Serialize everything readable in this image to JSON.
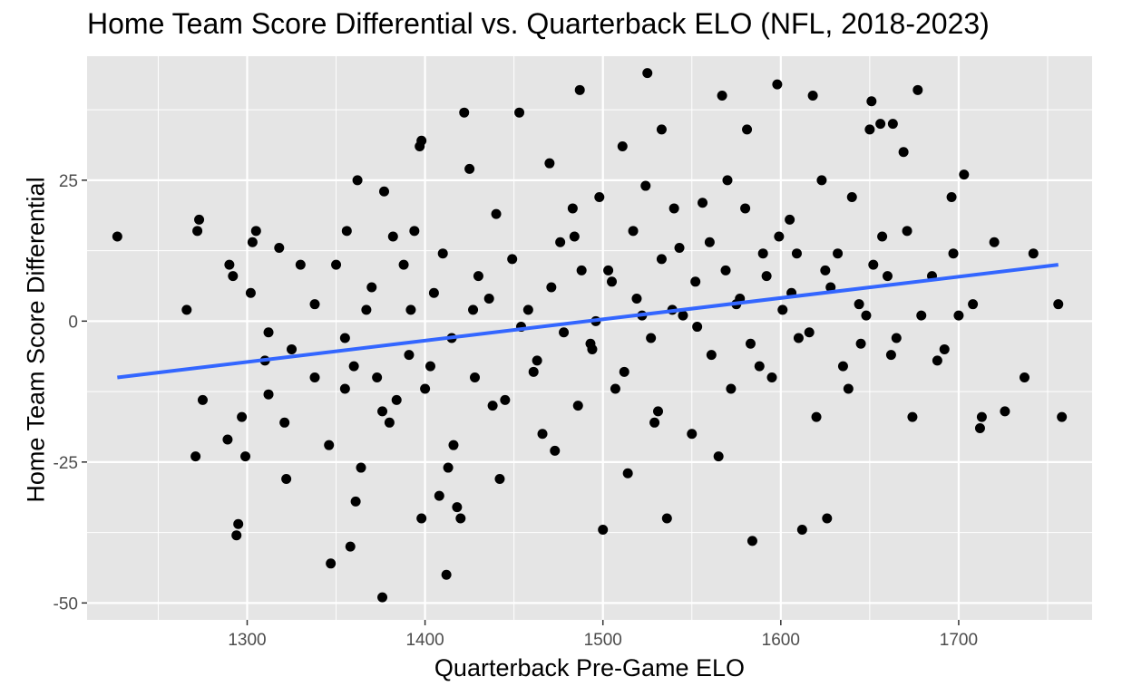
{
  "chart_data": {
    "type": "scatter",
    "title": "Home Team Score Differential vs. Quarterback ELO (NFL, 2018-2023)",
    "xlabel": "Quarterback Pre-Game ELO",
    "ylabel": "Home Team Score Differential",
    "xlim": [
      1210,
      1775
    ],
    "ylim": [
      -53,
      47
    ],
    "x_ticks": [
      1300,
      1400,
      1500,
      1600,
      1700
    ],
    "x_tick_labels": [
      "1300",
      "1400",
      "1500",
      "1600",
      "1700"
    ],
    "y_ticks": [
      -50,
      -25,
      0,
      25
    ],
    "y_tick_labels": [
      "-50",
      "-25",
      "0",
      "25"
    ],
    "grid": true,
    "legend": "none",
    "colors": {
      "background": "#e5e5e5",
      "grid": "#ffffff",
      "point": "#000000",
      "trend": "#3366ff"
    },
    "trend_line": {
      "x": [
        1227,
        1756
      ],
      "y": [
        -10,
        10
      ]
    },
    "points": [
      [
        1227,
        15
      ],
      [
        1266,
        2
      ],
      [
        1272,
        16
      ],
      [
        1273,
        18
      ],
      [
        1275,
        -14
      ],
      [
        1271,
        -24
      ],
      [
        1290,
        10
      ],
      [
        1292,
        8
      ],
      [
        1294,
        -38
      ],
      [
        1295,
        -36
      ],
      [
        1297,
        -17
      ],
      [
        1289,
        -21
      ],
      [
        1302,
        5
      ],
      [
        1303,
        14
      ],
      [
        1305,
        16
      ],
      [
        1299,
        -24
      ],
      [
        1310,
        -7
      ],
      [
        1312,
        -13
      ],
      [
        1318,
        13
      ],
      [
        1321,
        -18
      ],
      [
        1322,
        -28
      ],
      [
        1330,
        10
      ],
      [
        1347,
        -43
      ],
      [
        1358,
        -40
      ],
      [
        1361,
        -32
      ],
      [
        1376,
        -49
      ],
      [
        1398,
        -35
      ],
      [
        1408,
        -31
      ],
      [
        1412,
        -45
      ],
      [
        1418,
        -33
      ],
      [
        1420,
        -35
      ],
      [
        1397,
        31
      ],
      [
        1398,
        32
      ],
      [
        1422,
        37
      ],
      [
        1487,
        41
      ],
      [
        1525,
        44
      ],
      [
        1533,
        34
      ],
      [
        1567,
        40
      ],
      [
        1581,
        34
      ],
      [
        1598,
        42
      ],
      [
        1618,
        40
      ],
      [
        1651,
        39
      ],
      [
        1677,
        41
      ],
      [
        1650,
        34
      ],
      [
        1656,
        35
      ],
      [
        1663,
        35
      ],
      [
        1669,
        30
      ],
      [
        1696,
        22
      ],
      [
        1703,
        26
      ],
      [
        1742,
        12
      ],
      [
        1756,
        3
      ],
      [
        1758,
        -17
      ],
      [
        1737,
        -10
      ],
      [
        1726,
        -16
      ],
      [
        1713,
        -17
      ],
      [
        1712,
        -19
      ],
      [
        1692,
        -5
      ],
      [
        1674,
        -17
      ],
      [
        1612,
        -37
      ],
      [
        1626,
        -35
      ],
      [
        1584,
        -39
      ],
      [
        1536,
        -35
      ],
      [
        1500,
        -37
      ],
      [
        1356,
        16
      ],
      [
        1362,
        25
      ],
      [
        1377,
        23
      ],
      [
        1382,
        15
      ],
      [
        1394,
        16
      ],
      [
        1410,
        12
      ],
      [
        1425,
        27
      ],
      [
        1440,
        19
      ],
      [
        1453,
        37
      ],
      [
        1470,
        28
      ],
      [
        1483,
        20
      ],
      [
        1498,
        22
      ],
      [
        1511,
        31
      ],
      [
        1524,
        24
      ],
      [
        1540,
        20
      ],
      [
        1556,
        21
      ],
      [
        1570,
        25
      ],
      [
        1590,
        12
      ],
      [
        1605,
        18
      ],
      [
        1623,
        25
      ],
      [
        1640,
        22
      ],
      [
        1657,
        15
      ],
      [
        1671,
        16
      ],
      [
        1685,
        8
      ],
      [
        1697,
        12
      ],
      [
        1708,
        3
      ],
      [
        1720,
        14
      ],
      [
        1312,
        -2
      ],
      [
        1325,
        -5
      ],
      [
        1338,
        -10
      ],
      [
        1346,
        -22
      ],
      [
        1355,
        -3
      ],
      [
        1367,
        2
      ],
      [
        1373,
        -10
      ],
      [
        1384,
        -14
      ],
      [
        1391,
        -6
      ],
      [
        1403,
        -8
      ],
      [
        1415,
        -3
      ],
      [
        1428,
        -10
      ],
      [
        1436,
        4
      ],
      [
        1445,
        -14
      ],
      [
        1458,
        2
      ],
      [
        1463,
        -7
      ],
      [
        1471,
        6
      ],
      [
        1478,
        -2
      ],
      [
        1488,
        9
      ],
      [
        1493,
        -4
      ],
      [
        1505,
        7
      ],
      [
        1512,
        -9
      ],
      [
        1519,
        4
      ],
      [
        1527,
        -3
      ],
      [
        1533,
        11
      ],
      [
        1545,
        1
      ],
      [
        1552,
        7
      ],
      [
        1561,
        -6
      ],
      [
        1569,
        9
      ],
      [
        1575,
        3
      ],
      [
        1583,
        -4
      ],
      [
        1592,
        8
      ],
      [
        1601,
        2
      ],
      [
        1609,
        12
      ],
      [
        1616,
        -2
      ],
      [
        1628,
        6
      ],
      [
        1635,
        -8
      ],
      [
        1644,
        3
      ],
      [
        1652,
        10
      ],
      [
        1665,
        -3
      ],
      [
        1338,
        3
      ],
      [
        1350,
        10
      ],
      [
        1360,
        -8
      ],
      [
        1370,
        6
      ],
      [
        1380,
        -18
      ],
      [
        1392,
        2
      ],
      [
        1405,
        5
      ],
      [
        1416,
        -22
      ],
      [
        1430,
        8
      ],
      [
        1442,
        -28
      ],
      [
        1454,
        -1
      ],
      [
        1466,
        -20
      ],
      [
        1476,
        14
      ],
      [
        1486,
        -15
      ],
      [
        1496,
        0
      ],
      [
        1507,
        -12
      ],
      [
        1517,
        16
      ],
      [
        1529,
        -18
      ],
      [
        1539,
        2
      ],
      [
        1550,
        -20
      ],
      [
        1560,
        14
      ],
      [
        1572,
        -12
      ],
      [
        1580,
        20
      ],
      [
        1595,
        -10
      ],
      [
        1606,
        5
      ],
      [
        1620,
        -17
      ],
      [
        1632,
        12
      ],
      [
        1645,
        -4
      ],
      [
        1660,
        8
      ],
      [
        1679,
        1
      ],
      [
        1355,
        -12
      ],
      [
        1364,
        -26
      ],
      [
        1376,
        -16
      ],
      [
        1388,
        10
      ],
      [
        1400,
        -12
      ],
      [
        1413,
        -26
      ],
      [
        1427,
        2
      ],
      [
        1438,
        -15
      ],
      [
        1449,
        11
      ],
      [
        1461,
        -9
      ],
      [
        1473,
        -23
      ],
      [
        1484,
        15
      ],
      [
        1494,
        -5
      ],
      [
        1503,
        9
      ],
      [
        1514,
        -27
      ],
      [
        1522,
        1
      ],
      [
        1531,
        -16
      ],
      [
        1543,
        13
      ],
      [
        1553,
        -1
      ],
      [
        1565,
        -24
      ],
      [
        1577,
        4
      ],
      [
        1588,
        -8
      ],
      [
        1599,
        15
      ],
      [
        1610,
        -3
      ],
      [
        1625,
        9
      ],
      [
        1638,
        -12
      ],
      [
        1648,
        1
      ],
      [
        1662,
        -6
      ],
      [
        1688,
        -7
      ],
      [
        1700,
        1
      ]
    ]
  }
}
